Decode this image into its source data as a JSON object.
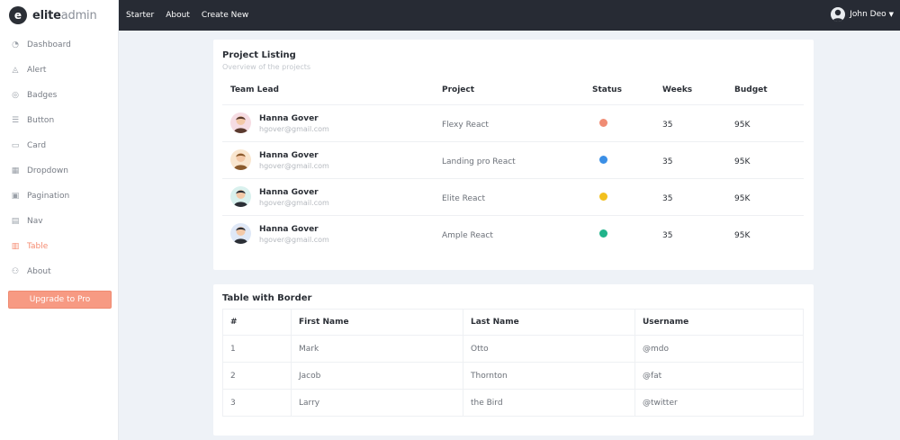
{
  "brand": {
    "name_bold": "elite",
    "name_light": "admin",
    "mark": "e"
  },
  "topbar": {
    "links": [
      "Starter",
      "About",
      "Create New"
    ],
    "user_name": "John Deo"
  },
  "sidebar": {
    "items": [
      {
        "label": "Dashboard",
        "icon": "gauge-icon",
        "glyph": "◔"
      },
      {
        "label": "Alert",
        "icon": "bell-icon",
        "glyph": "◬"
      },
      {
        "label": "Badges",
        "icon": "badge-icon",
        "glyph": "◎"
      },
      {
        "label": "Button",
        "icon": "button-icon",
        "glyph": "☰"
      },
      {
        "label": "Card",
        "icon": "card-icon",
        "glyph": "▭"
      },
      {
        "label": "Dropdown",
        "icon": "dropdown-icon",
        "glyph": "▦"
      },
      {
        "label": "Pagination",
        "icon": "pagination-icon",
        "glyph": "▣"
      },
      {
        "label": "Nav",
        "icon": "nav-icon",
        "glyph": "▤"
      },
      {
        "label": "Table",
        "icon": "table-icon",
        "glyph": "▥",
        "active": true
      },
      {
        "label": "About",
        "icon": "users-icon",
        "glyph": "⚇"
      }
    ],
    "upgrade_label": "Upgrade to Pro",
    "active_color": "#f58a70"
  },
  "project_card": {
    "title": "Project Listing",
    "subtitle": "Overview of the projects",
    "headers": [
      "Team Lead",
      "Project",
      "Status",
      "Weeks",
      "Budget"
    ],
    "rows": [
      {
        "name": "Hanna Gover",
        "email": "hgover@gmail.com",
        "project": "Flexy React",
        "status_color": "#f08c74",
        "weeks": "35",
        "budget": "95K",
        "avatar_bg": "#f6dce3",
        "hair": "#5a3a2e"
      },
      {
        "name": "Hanna Gover",
        "email": "hgover@gmail.com",
        "project": "Landing pro React",
        "status_color": "#3b8fe6",
        "weeks": "35",
        "budget": "95K",
        "avatar_bg": "#f9e6cf",
        "hair": "#8a5a2c"
      },
      {
        "name": "Hanna Gover",
        "email": "hgover@gmail.com",
        "project": "Elite React",
        "status_color": "#f2c01e",
        "weeks": "35",
        "budget": "95K",
        "avatar_bg": "#d9f1ee",
        "hair": "#2b2f36"
      },
      {
        "name": "Hanna Gover",
        "email": "hgover@gmail.com",
        "project": "Ample React",
        "status_color": "#20b38a",
        "weeks": "35",
        "budget": "95K",
        "avatar_bg": "#dfe8f7",
        "hair": "#2b2f36"
      }
    ]
  },
  "border_card": {
    "title": "Table with Border",
    "headers": [
      "#",
      "First Name",
      "Last Name",
      "Username"
    ],
    "rows": [
      [
        "1",
        "Mark",
        "Otto",
        "@mdo"
      ],
      [
        "2",
        "Jacob",
        "Thornton",
        "@fat"
      ],
      [
        "3",
        "Larry",
        "the Bird",
        "@twitter"
      ]
    ]
  }
}
